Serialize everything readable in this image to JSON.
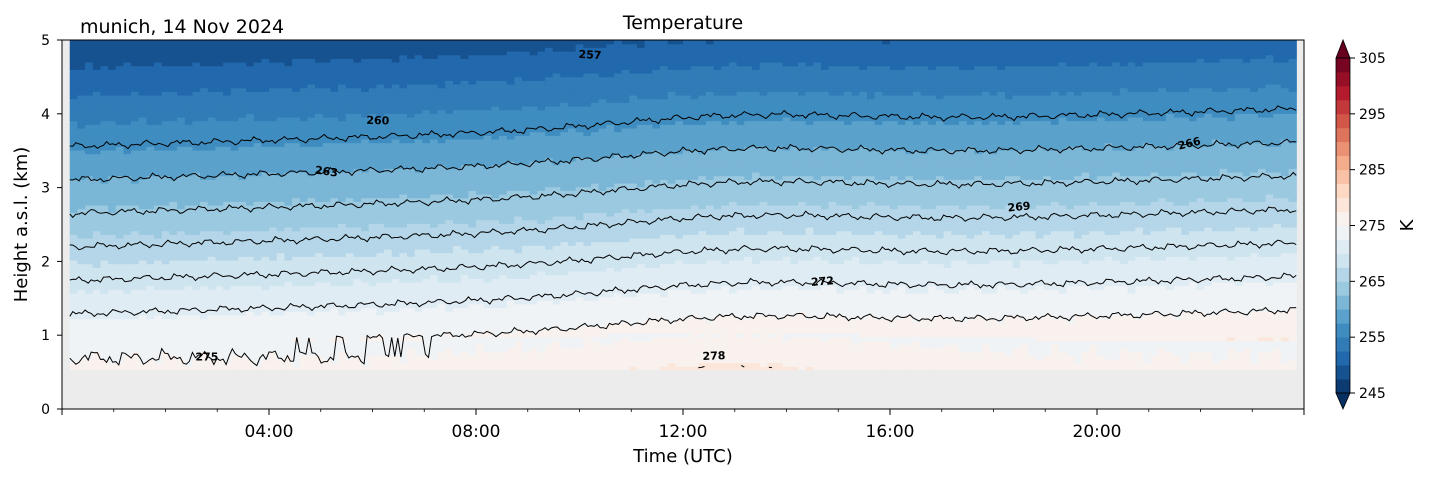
{
  "chart_data": {
    "type": "heatmap",
    "title": "Temperature",
    "subtitle": "munich, 14 Nov 2024",
    "xlabel": "Time (UTC)",
    "ylabel": "Height a.s.l. (km)",
    "x_range_hours": [
      0,
      24
    ],
    "ylim": [
      0,
      5
    ],
    "x_ticks": [
      {
        "hour": 4,
        "label": "04:00"
      },
      {
        "hour": 8,
        "label": "08:00"
      },
      {
        "hour": 12,
        "label": "12:00"
      },
      {
        "hour": 16,
        "label": "16:00"
      },
      {
        "hour": 20,
        "label": "20:00"
      }
    ],
    "y_ticks": [
      0,
      1,
      2,
      3,
      4,
      5
    ],
    "y_tick_labels": [
      "0",
      "1",
      "2",
      "3",
      "4",
      "5"
    ],
    "colorbar": {
      "label": "K",
      "min": 245,
      "max": 305,
      "step": 2.5,
      "ticks": [
        245,
        255,
        265,
        275,
        285,
        295,
        305
      ],
      "tick_labels": [
        "245",
        "255",
        "265",
        "275",
        "285",
        "295",
        "305"
      ],
      "colormap": "RdBu_r",
      "extend": "both"
    },
    "ground_height_km": 0.53,
    "profile_model": {
      "t_surface_base_K": 275.5,
      "t_surface_amp_K": 2.6,
      "warm_peak_hour": 13.0,
      "warm_width_hours": 3.5,
      "lapse_K_per_km": 6.6,
      "inversion_top_base_km": 0.95,
      "warming_K_per_hour": 0.17
    },
    "contour_levels": [
      257,
      260,
      263,
      266,
      269,
      272,
      275,
      278
    ],
    "contour_labels": [
      {
        "text": "257",
        "hour": 10.2,
        "km": 4.75,
        "angle": 3
      },
      {
        "text": "260",
        "hour": 6.1,
        "km": 3.86,
        "angle": 2
      },
      {
        "text": "263",
        "hour": 5.1,
        "km": 3.17,
        "angle": 8
      },
      {
        "text": "266",
        "hour": 21.8,
        "km": 3.55,
        "angle": -14
      },
      {
        "text": "269",
        "hour": 18.5,
        "km": 2.69,
        "angle": -6
      },
      {
        "text": "272",
        "hour": 14.7,
        "km": 1.68,
        "angle": -4
      },
      {
        "text": "275",
        "hour": 2.8,
        "km": 0.66,
        "angle": 0
      },
      {
        "text": "278",
        "hour": 12.6,
        "km": 0.67,
        "angle": -2
      }
    ],
    "grid": false,
    "legend": "colorbar-right"
  }
}
